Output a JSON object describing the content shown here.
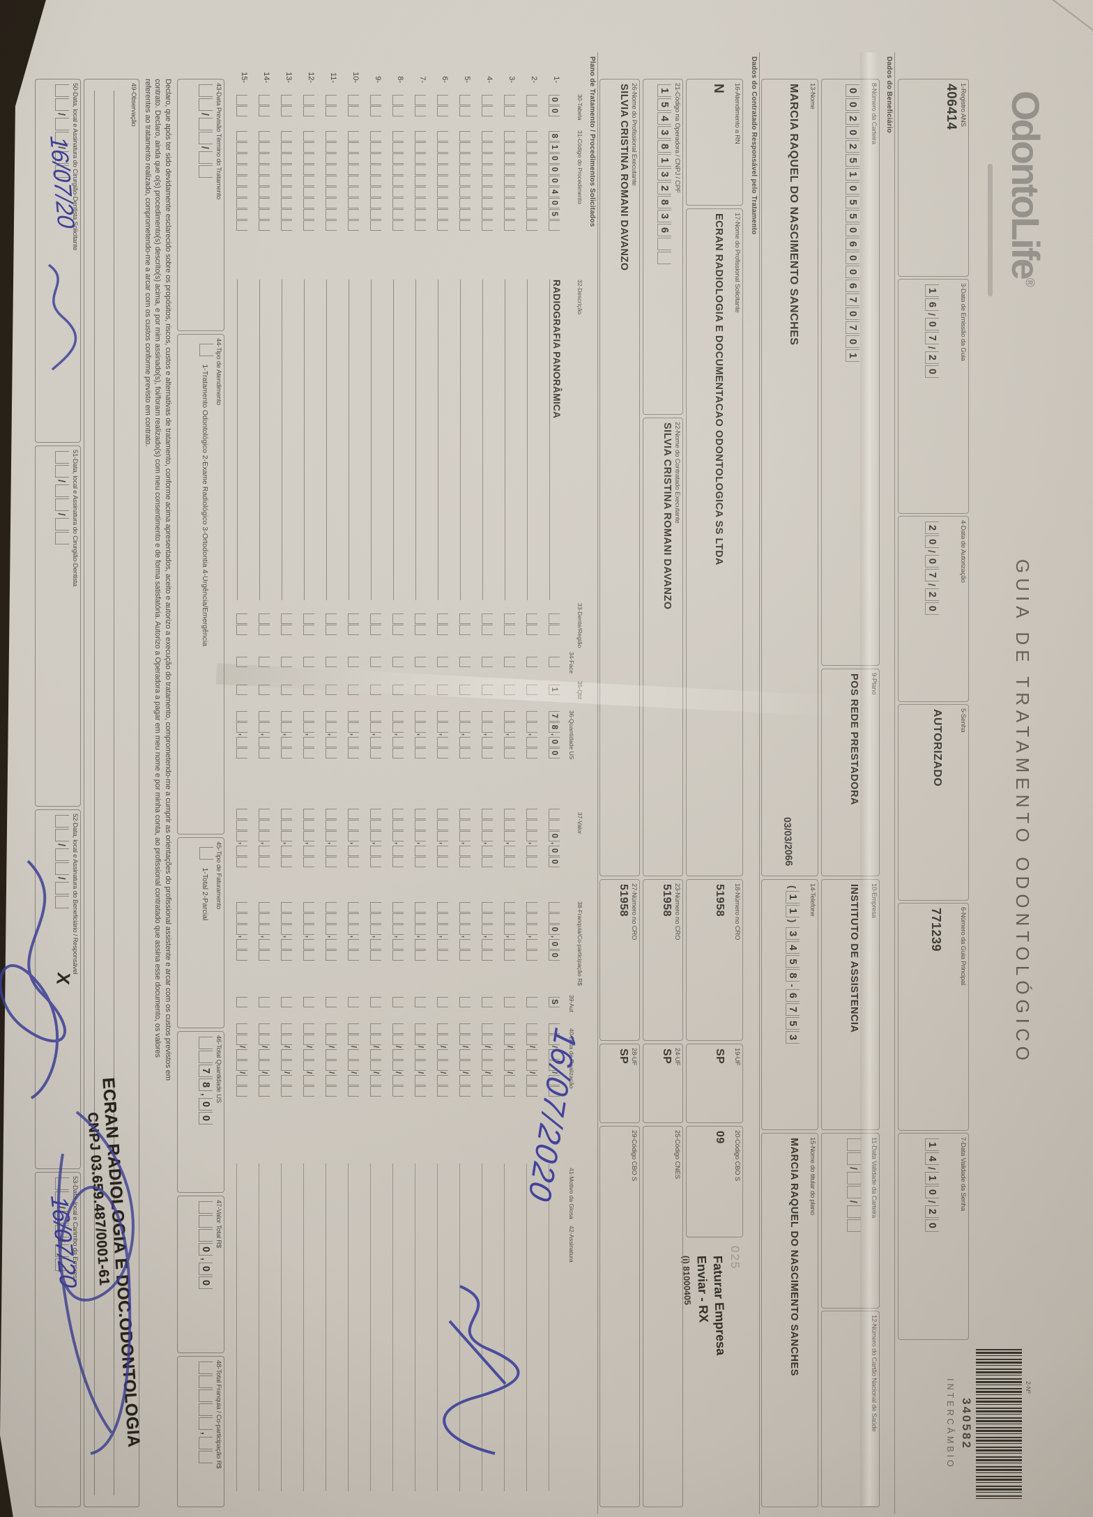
{
  "logo": {
    "text": "OdontoLife",
    "registered": "®"
  },
  "title": "GUIA DE TRATAMENTO ODONTOLÓGICO",
  "guide": {
    "no_label": "2-Nº",
    "number": "340582",
    "mode": "INTERCÂMBIO"
  },
  "sections": {
    "beneficiario": "Dados do Beneficiário",
    "contratado": "Dados do Contratado Responsável pelo Tratamento",
    "plano": "Plano de Tratamento / Procedimentos Solicitados"
  },
  "fields": {
    "f1": {
      "label": "1-Registro ANS",
      "value": "406414"
    },
    "f3": {
      "label": "3-Data de Emissão da Guia",
      "value": "16/07/20"
    },
    "f4": {
      "label": "4-Data de Autorização",
      "value": "20/07/20"
    },
    "f5": {
      "label": "5-Senha",
      "value": "AUTORIZADO"
    },
    "f6": {
      "label": "6-Número da Guia Principal",
      "value": "771239"
    },
    "f7": {
      "label": "7-Data Validade da Senha",
      "value": "14/10/20"
    },
    "f8": {
      "label": "8-Número da Carteira",
      "value": "00202510550600670701"
    },
    "f9": {
      "label": "9-Plano",
      "value": "POS REDE PRESTADORA"
    },
    "f10": {
      "label": "10-Empresa",
      "value": "INSTITUTO DE ASSISTENCIA"
    },
    "f11": {
      "label": "11-Data Validade da Carteira",
      "value": ""
    },
    "f12": {
      "label": "12-Número do Cartão Nacional de Saúde",
      "value": ""
    },
    "f13": {
      "label": "13-Nome",
      "value": "MARCIA RAQUEL DO NASCIMENTO SANCHES",
      "extra": "03/03/2066"
    },
    "f14": {
      "label": "14-Telefone",
      "value": "(11)3458-6753"
    },
    "f15": {
      "label": "15-Nome do titular do plano",
      "value": "MARCIA RAQUEL DO NASCIMENTO SANCHES"
    },
    "f16": {
      "label": "16-Atendimento a RN",
      "value": "N"
    },
    "f17": {
      "label": "17-Nome do Profissional Solicitante",
      "value": "ECRAN RADIOLOGIA E DOCUMENTACAO ODONTOLOGICA SS LTDA"
    },
    "f18": {
      "label": "18-Número no CRO",
      "value": "51958"
    },
    "f19": {
      "label": "19-UF",
      "value": "SP"
    },
    "f20": {
      "label": "20-Código CBO S",
      "value": "09"
    },
    "f21": {
      "label": "21-Código na Operadora / CNPJ / CPF",
      "value": "15438132836"
    },
    "f22": {
      "label": "22-Nome do Contratado Executante",
      "value": "SILVIA CRISTINA ROMANI DAVANZO"
    },
    "f23": {
      "label": "23-Número no CRO",
      "value": "51958"
    },
    "f24": {
      "label": "24-UF",
      "value": "SP"
    },
    "f25": {
      "label": "25-Código CNES",
      "value": ""
    },
    "f26": {
      "label": "26-Nome do Profissional Executante",
      "value": "SILVIA CRISTINA ROMANI DAVANZO"
    },
    "f27": {
      "label": "27-Número no CRO",
      "value": "51958"
    },
    "f28": {
      "label": "28-UF",
      "value": "SP"
    },
    "f29": {
      "label": "29-Código CBO S",
      "value": ""
    },
    "f43": {
      "label": "43-Data Previsão Término do Tratamento",
      "value": ""
    },
    "f44": {
      "label": "44-Tipo de Atendimento",
      "options": "1-Tratamento Odontológico  2-Exame Radiológico  3-Ortodontia  4-Urgência/Emergência",
      "value": ""
    },
    "f45": {
      "label": "45-Tipo de Faturamento",
      "options": "1-Total  2-Parcial",
      "value": ""
    },
    "f46": {
      "label": "46-Total Quantidade US",
      "value": "78,00"
    },
    "f47": {
      "label": "47-Valor Total R$",
      "value": "0,00"
    },
    "f48": {
      "label": "48-Total Franquia / Co-participação R$",
      "value": ""
    },
    "f49": {
      "label": "49-Observação"
    },
    "f50": {
      "label": "50-Data, local e Assinatura do Cirurgião-Dentista Solicitante"
    },
    "f51": {
      "label": "51-Data, local e Assinatura do Cirurgião-Dentista"
    },
    "f52": {
      "label": "52-Data, local e Assinatura do Beneficiário / Responsável"
    },
    "f53": {
      "label": "53-Data, local e Carimbo da Empresa"
    }
  },
  "auth_note": {
    "code": "025",
    "line1": "Faturar Empresa",
    "line2": "Enviar - RX",
    "line3": "(i) 81000405"
  },
  "table": {
    "headers": {
      "h30": "30-Tabela",
      "h31": "31-Código do Procedimento",
      "h32": "32-Descrição",
      "h33": "33-Dente/Região",
      "h34": "34-Face",
      "h35": "35-Qtd",
      "h36": "36-Quantidade US",
      "h37": "37-Valor",
      "h38": "38-Franquia/Co-participação R$",
      "h39": "39-Aut",
      "h40": "40-Data de Realização",
      "h41": "41-Motivo da Glosa",
      "h42": "42-Assinatura"
    },
    "rows": [
      {
        "n": "1",
        "tabela": "00",
        "codigo": "81000405",
        "desc": "RADIOGRAFIA PANORÂMICA",
        "dente": "",
        "face": "",
        "qtd": "1",
        "us": "78,00",
        "valor": "0,00",
        "franquia": "0,00",
        "aut": "S",
        "data": ""
      },
      {
        "n": "2"
      },
      {
        "n": "3"
      },
      {
        "n": "4"
      },
      {
        "n": "5"
      },
      {
        "n": "6"
      },
      {
        "n": "7"
      },
      {
        "n": "8"
      },
      {
        "n": "9"
      },
      {
        "n": "10"
      },
      {
        "n": "11"
      },
      {
        "n": "12"
      },
      {
        "n": "13"
      },
      {
        "n": "14"
      },
      {
        "n": "15"
      }
    ]
  },
  "declaration": [
    "Declaro, que após ter sido devidamente esclarecido sobre os propósitos, riscos, custos e alternativas de tratamento, conforme acima apresentados, aceito e autorizo a execução do tratamento, comprometendo-me a cumprir as orientações do profissional assistente e arcar com os custos previstos em",
    "contrato. Declaro, ainda que o(s) procedimento(s) descrito(s) acima, e por mim assinado(s), foi/foram realizado(s) com meu consentimento e de forma satisfatória. Autorizo a Operadora a pagar em meu nome e por minha conta, ao profissional contratado que assina esse documento, os valores",
    "referentes ao tratamento realizado, comprometendo-me a arcar com os custos conforme previsto em contrato."
  ],
  "handwriting": {
    "date_realizacao": "16/07/2020",
    "date_50": "16/07/20",
    "x_52": "X",
    "date_53": "16/07/20"
  },
  "stamp": {
    "line1": "ECRAN RADIOLOGIA E DOC.ODONTOLOGIA",
    "line2": "CNPJ 03.659.487/0001-61"
  }
}
